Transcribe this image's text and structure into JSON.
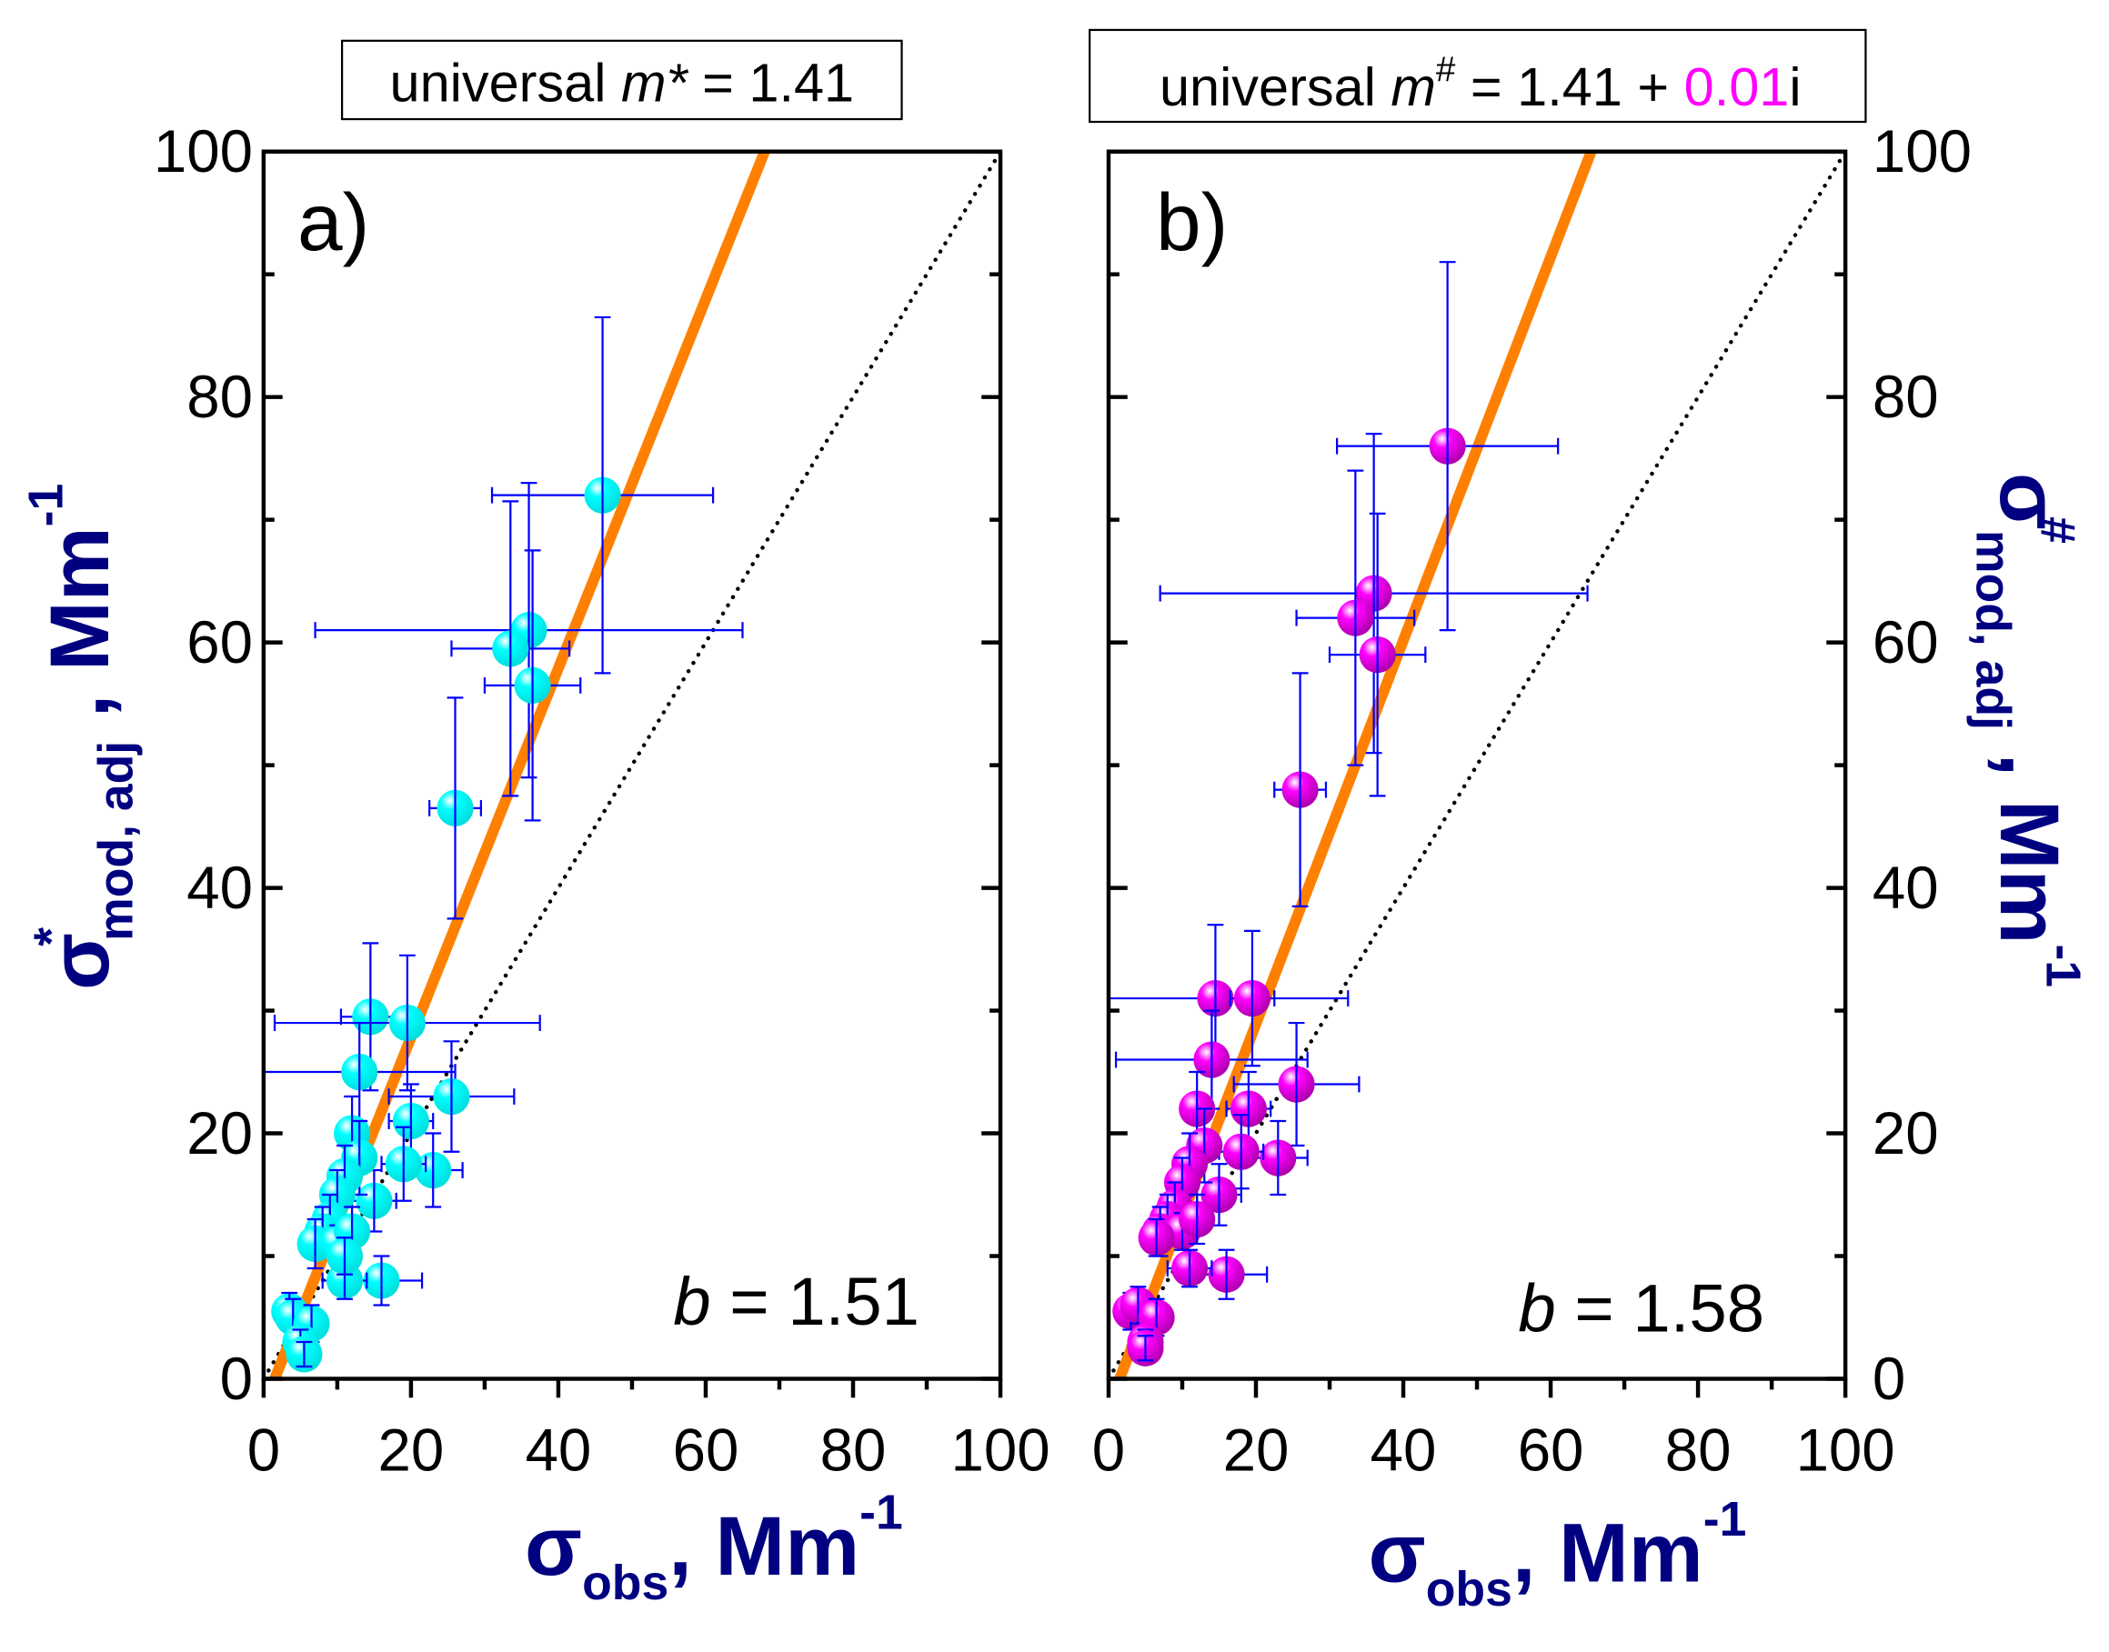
{
  "chart_data": [
    {
      "id": "a",
      "type": "scatter",
      "panel_label": "a)",
      "title_box": {
        "prefix": "universal  ",
        "var": "m",
        "sup": "*",
        "rest": " = 1.41",
        "imag": ""
      },
      "annotation": {
        "var": "b",
        "text": " = 1.51"
      },
      "xlabel": {
        "sym": "σ",
        "sub": "obs",
        "unit": ", Mm",
        "sup": "-1"
      },
      "ylabel": {
        "sym": "σ",
        "sup_star": "*",
        "sub": "mod, adj",
        "unit": " , Mm",
        "sup": "-1"
      },
      "xlim": [
        0,
        100
      ],
      "ylim": [
        0,
        100
      ],
      "x_ticks": [
        "0",
        "20",
        "40",
        "60",
        "80",
        "100"
      ],
      "y_ticks": [
        "0",
        "20",
        "40",
        "60",
        "80",
        "100"
      ],
      "y_axis_side": "left",
      "marker_color": "#00FFFF",
      "errorbar_color": "#0000FF",
      "fit_color": "#FF8000",
      "fit_line": [
        [
          1.5,
          0
        ],
        [
          68,
          100
        ]
      ],
      "one_to_one_line": [
        [
          0,
          0
        ],
        [
          100,
          100
        ]
      ],
      "points": [
        {
          "x": 46,
          "y": 72,
          "xe": 15,
          "ye": 14.5
        },
        {
          "x": 36,
          "y": 61,
          "xe": 29,
          "ye": 12
        },
        {
          "x": 33.5,
          "y": 59.5,
          "xe": 8,
          "ye": 12
        },
        {
          "x": 36.5,
          "y": 56.5,
          "xe": 6.5,
          "ye": 11
        },
        {
          "x": 26,
          "y": 46.5,
          "xe": 3.5,
          "ye": 9
        },
        {
          "x": 14.5,
          "y": 29.5,
          "xe": 4,
          "ye": 6
        },
        {
          "x": 19.5,
          "y": 29,
          "xe": 18,
          "ye": 5.5
        },
        {
          "x": 13,
          "y": 25,
          "xe": 13,
          "ye": 4
        },
        {
          "x": 25.5,
          "y": 23,
          "xe": 8.5,
          "ye": 4.5
        },
        {
          "x": 23,
          "y": 17,
          "xe": 4,
          "ye": 3
        },
        {
          "x": 16,
          "y": 8,
          "xe": 5.5,
          "ye": 2
        },
        {
          "x": 11,
          "y": 8,
          "xe": 3,
          "ye": 1.5
        },
        {
          "x": 20,
          "y": 21,
          "xe": 3,
          "ye": 3
        },
        {
          "x": 19,
          "y": 17.5,
          "xe": 3,
          "ye": 3
        },
        {
          "x": 15,
          "y": 14.5,
          "xe": 3,
          "ye": 2.5
        },
        {
          "x": 12,
          "y": 20,
          "xe": 2,
          "ye": 3
        },
        {
          "x": 13,
          "y": 18,
          "xe": 2,
          "ye": 3
        },
        {
          "x": 11,
          "y": 16.5,
          "xe": 2,
          "ye": 2.5
        },
        {
          "x": 10,
          "y": 15,
          "xe": 2,
          "ye": 2
        },
        {
          "x": 9,
          "y": 13,
          "xe": 2,
          "ye": 2
        },
        {
          "x": 8,
          "y": 12,
          "xe": 1.5,
          "ye": 2
        },
        {
          "x": 7,
          "y": 11,
          "xe": 1.5,
          "ye": 2
        },
        {
          "x": 10,
          "y": 11,
          "xe": 1.5,
          "ye": 1.5
        },
        {
          "x": 12,
          "y": 12,
          "xe": 2,
          "ye": 2
        },
        {
          "x": 11,
          "y": 10,
          "xe": 1.5,
          "ye": 1.5
        },
        {
          "x": 3.5,
          "y": 5.5,
          "xe": 1.5,
          "ye": 1.5
        },
        {
          "x": 4,
          "y": 5,
          "xe": 1.5,
          "ye": 1.5
        },
        {
          "x": 6.5,
          "y": 4.5,
          "xe": 1.5,
          "ye": 1.5
        },
        {
          "x": 5,
          "y": 3,
          "xe": 1,
          "ye": 1
        },
        {
          "x": 5.5,
          "y": 2,
          "xe": 1,
          "ye": 1
        }
      ]
    },
    {
      "id": "b",
      "type": "scatter",
      "panel_label": "b)",
      "title_box": {
        "prefix": "universal  ",
        "var": "m",
        "sup": "#",
        "rest": " = 1.41 + ",
        "imag": "0.01",
        "imag_suffix": "i",
        "imag_color": "#FF00FF"
      },
      "annotation": {
        "var": "b",
        "text": " = 1.58"
      },
      "xlabel": {
        "sym": "σ",
        "sub": "obs",
        "unit": ", Mm",
        "sup": "-1"
      },
      "ylabel": {
        "sym": "σ",
        "sup_star": "#",
        "sub": "mod, adj",
        "unit": " , Mm",
        "sup": "-1"
      },
      "xlim": [
        0,
        100
      ],
      "ylim": [
        0,
        100
      ],
      "x_ticks": [
        "0",
        "20",
        "40",
        "60",
        "80",
        "100"
      ],
      "y_ticks": [
        "0",
        "20",
        "40",
        "60",
        "80",
        "100"
      ],
      "y_axis_side": "right",
      "marker_color": "#FF00FF",
      "errorbar_color": "#0000FF",
      "fit_color": "#FF8000",
      "fit_line": [
        [
          1.5,
          0
        ],
        [
          65.5,
          100
        ]
      ],
      "one_to_one_line": [
        [
          0,
          0
        ],
        [
          100,
          100
        ]
      ],
      "points": [
        {
          "x": 46,
          "y": 76,
          "xe": 15,
          "ye": 15
        },
        {
          "x": 36,
          "y": 64,
          "xe": 29,
          "ye": 13
        },
        {
          "x": 33.5,
          "y": 62,
          "xe": 8,
          "ye": 12
        },
        {
          "x": 36.5,
          "y": 59,
          "xe": 6.5,
          "ye": 11.5
        },
        {
          "x": 26,
          "y": 48,
          "xe": 3.5,
          "ye": 9.5
        },
        {
          "x": 14.5,
          "y": 31,
          "xe": 18,
          "ye": 6
        },
        {
          "x": 19.5,
          "y": 31,
          "xe": 3,
          "ye": 5.5
        },
        {
          "x": 14,
          "y": 26,
          "xe": 13,
          "ye": 4
        },
        {
          "x": 25.5,
          "y": 24,
          "xe": 8.5,
          "ye": 5
        },
        {
          "x": 23,
          "y": 18,
          "xe": 4,
          "ye": 3
        },
        {
          "x": 16,
          "y": 8.5,
          "xe": 5.5,
          "ye": 2
        },
        {
          "x": 11,
          "y": 9,
          "xe": 3,
          "ye": 1.5
        },
        {
          "x": 19,
          "y": 22,
          "xe": 3,
          "ye": 3
        },
        {
          "x": 18,
          "y": 18.5,
          "xe": 3,
          "ye": 3
        },
        {
          "x": 15,
          "y": 15,
          "xe": 3,
          "ye": 2.5
        },
        {
          "x": 12,
          "y": 22,
          "xe": 2,
          "ye": 3
        },
        {
          "x": 13,
          "y": 19,
          "xe": 2,
          "ye": 3
        },
        {
          "x": 11,
          "y": 17.5,
          "xe": 2,
          "ye": 2.5
        },
        {
          "x": 10,
          "y": 16,
          "xe": 2,
          "ye": 2
        },
        {
          "x": 9,
          "y": 14,
          "xe": 2,
          "ye": 2
        },
        {
          "x": 8,
          "y": 13,
          "xe": 1.5,
          "ye": 2
        },
        {
          "x": 7,
          "y": 12,
          "xe": 1.5,
          "ye": 2
        },
        {
          "x": 10,
          "y": 12,
          "xe": 1.5,
          "ye": 1.5
        },
        {
          "x": 12,
          "y": 13,
          "xe": 2,
          "ye": 2
        },
        {
          "x": 6.5,
          "y": 11.5,
          "xe": 1.5,
          "ye": 1.5
        },
        {
          "x": 3,
          "y": 5.5,
          "xe": 1.5,
          "ye": 1.5
        },
        {
          "x": 4,
          "y": 6,
          "xe": 1.5,
          "ye": 1.5
        },
        {
          "x": 6.5,
          "y": 5,
          "xe": 1.5,
          "ye": 1.5
        },
        {
          "x": 5,
          "y": 3,
          "xe": 1,
          "ye": 1
        },
        {
          "x": 5,
          "y": 2.5,
          "xe": 1,
          "ye": 1
        }
      ]
    }
  ]
}
